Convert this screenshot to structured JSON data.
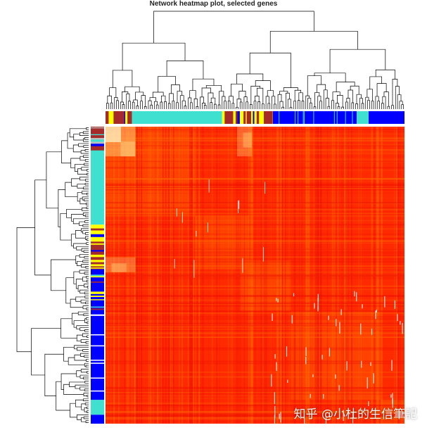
{
  "chart_data": {
    "type": "heatmap",
    "title": "Network heatmap plot, selected genes",
    "xlabel": "",
    "ylabel": "",
    "matrix": "topological overlap (TOM) among selected genes",
    "color_scale": {
      "low": "#ff1a00",
      "mid": "#ff6a00",
      "high": "#fff4c8"
    },
    "module_colors": {
      "turquoise": "#40e0d0",
      "blue": "#0000ff",
      "brown": "#a52a2a",
      "yellow": "#ffff00",
      "grey": "#bebebe"
    },
    "column_module_blocks": [
      {
        "module": "mixed-brown-yellow-blue",
        "share": 0.09
      },
      {
        "module": "turquoise",
        "share": 0.3
      },
      {
        "module": "brown-yellow",
        "share": 0.17
      },
      {
        "module": "blue",
        "share": 0.28
      },
      {
        "module": "turquoise",
        "share": 0.04
      },
      {
        "module": "blue",
        "share": 0.12
      }
    ],
    "row_module_blocks": [
      {
        "module": "grey-brown-mixed",
        "share": 0.08
      },
      {
        "module": "turquoise",
        "share": 0.25
      },
      {
        "module": "brown-yellow",
        "share": 0.15
      },
      {
        "module": "blue-brown-mixed",
        "share": 0.14
      },
      {
        "module": "blue",
        "share": 0.3
      },
      {
        "module": "turquoise",
        "share": 0.05
      },
      {
        "module": "blue",
        "share": 0.03
      }
    ],
    "dendrograms": [
      "top (columns)",
      "left (rows)"
    ],
    "legend": "none"
  },
  "watermark": "知乎 @小杜的生信筆記"
}
